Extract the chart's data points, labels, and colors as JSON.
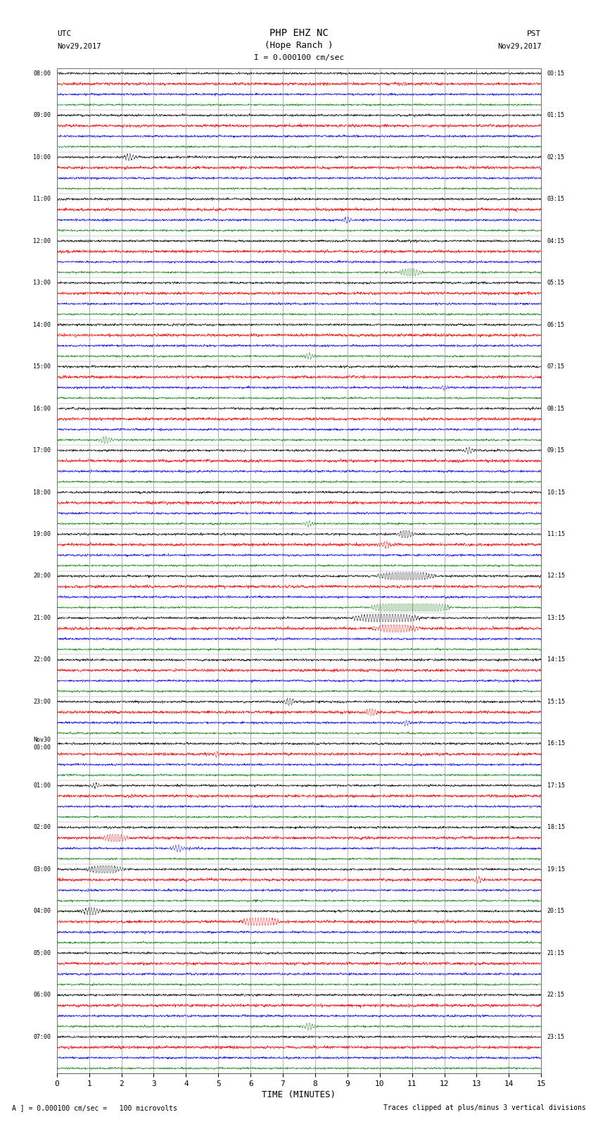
{
  "title_line1": "PHP EHZ NC",
  "title_line2": "(Hope Ranch )",
  "scale_label": "I = 0.000100 cm/sec",
  "xlabel": "TIME (MINUTES)",
  "footer_left": "A ] = 0.000100 cm/sec =   100 microvolts",
  "footer_right": "Traces clipped at plus/minus 3 vertical divisions",
  "bg_color": "#ffffff",
  "colors": [
    "#000000",
    "#ff0000",
    "#0000ff",
    "#008000"
  ],
  "x_min": 0,
  "x_max": 15,
  "hours_utc": [
    "08:00",
    "09:00",
    "10:00",
    "11:00",
    "12:00",
    "13:00",
    "14:00",
    "15:00",
    "16:00",
    "17:00",
    "18:00",
    "19:00",
    "20:00",
    "21:00",
    "22:00",
    "23:00",
    "Nov30\n00:00",
    "01:00",
    "02:00",
    "03:00",
    "04:00",
    "05:00",
    "06:00",
    "07:00"
  ],
  "hours_pst": [
    "00:15",
    "01:15",
    "02:15",
    "03:15",
    "04:15",
    "05:15",
    "06:15",
    "07:15",
    "08:15",
    "09:15",
    "10:15",
    "11:15",
    "12:15",
    "13:15",
    "14:15",
    "15:15",
    "16:15",
    "17:15",
    "18:15",
    "19:15",
    "20:15",
    "21:15",
    "22:15",
    "23:15"
  ],
  "num_hours": 24,
  "traces_per_hour": 4,
  "num_samples": 3600,
  "noise_amp": 0.06,
  "trace_scale": 0.38,
  "lw": 0.3
}
